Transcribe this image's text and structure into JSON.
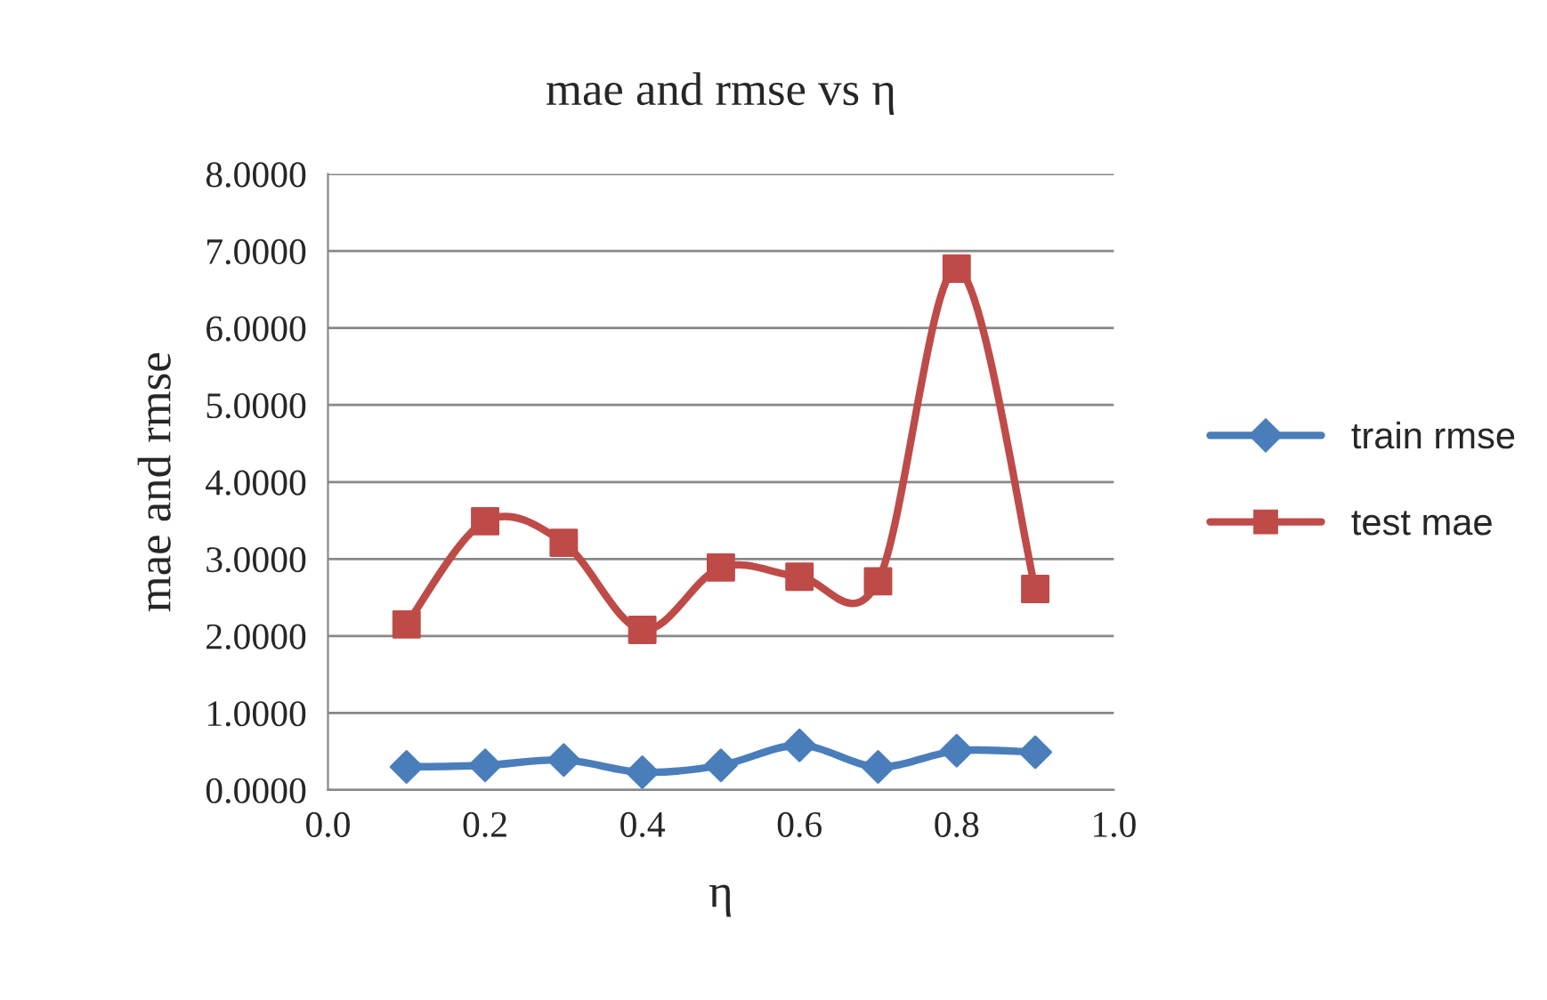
{
  "chart_data": {
    "type": "line",
    "title": "mae and rmse vs η",
    "xlabel": "η",
    "ylabel": "mae and rmse",
    "x": [
      0.1,
      0.2,
      0.3,
      0.4,
      0.5,
      0.6,
      0.7,
      0.8,
      0.9
    ],
    "series": [
      {
        "name": "train rmse",
        "color": "#4a7ebb",
        "marker": "diamond",
        "values": [
          0.3,
          0.32,
          0.39,
          0.23,
          0.32,
          0.58,
          0.3,
          0.51,
          0.49
        ]
      },
      {
        "name": "test mae",
        "color": "#be4b48",
        "marker": "square",
        "values": [
          2.15,
          3.49,
          3.21,
          2.08,
          2.89,
          2.77,
          2.71,
          6.77,
          2.61
        ]
      }
    ],
    "xlim": [
      0,
      1
    ],
    "xticks": [
      {
        "value": 0,
        "label": "0.0"
      },
      {
        "value": 0.2,
        "label": "0.2"
      },
      {
        "value": 0.4,
        "label": "0.4"
      },
      {
        "value": 0.6,
        "label": "0.6"
      },
      {
        "value": 0.8,
        "label": "0.8"
      },
      {
        "value": 1,
        "label": "1.0"
      }
    ],
    "ylim": [
      0,
      8
    ],
    "yticks": [
      {
        "value": 0,
        "label": "0.0000"
      },
      {
        "value": 1,
        "label": "1.0000"
      },
      {
        "value": 2,
        "label": "2.0000"
      },
      {
        "value": 3,
        "label": "3.0000"
      },
      {
        "value": 4,
        "label": "4.0000"
      },
      {
        "value": 5,
        "label": "5.0000"
      },
      {
        "value": 6,
        "label": "6.0000"
      },
      {
        "value": 7,
        "label": "7.0000"
      },
      {
        "value": 8,
        "label": "8.0000"
      }
    ],
    "grid": "y",
    "legend": "right",
    "line_style": "solid"
  }
}
